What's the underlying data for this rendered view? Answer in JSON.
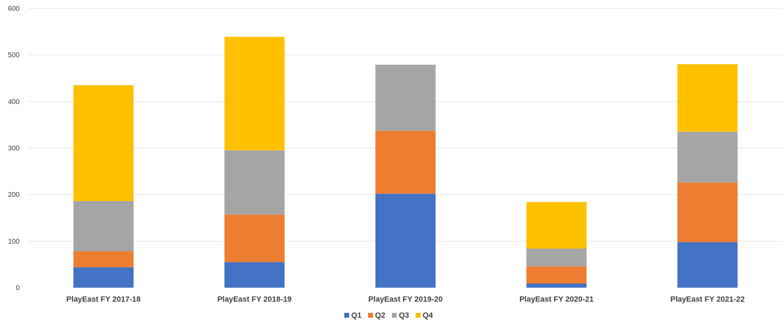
{
  "chart_data": {
    "type": "bar",
    "stacked": true,
    "title": "",
    "xlabel": "",
    "ylabel": "",
    "ylim": [
      0,
      600
    ],
    "yticks": [
      0,
      100,
      200,
      300,
      400,
      500,
      600
    ],
    "grid": true,
    "legend_position": "bottom",
    "categories": [
      "PlayEast FY 2017-18",
      "PlayEast FY 2018-19",
      "PlayEast FY 2019-20",
      "PlayEast FY 2020-21",
      "PlayEast FY 2021-22"
    ],
    "series": [
      {
        "name": "Q1",
        "color": "#4472C4",
        "values": [
          44,
          55,
          202,
          9,
          98
        ]
      },
      {
        "name": "Q2",
        "color": "#ED7D31",
        "values": [
          34,
          102,
          135,
          37,
          128
        ]
      },
      {
        "name": "Q3",
        "color": "#A5A5A5",
        "values": [
          108,
          138,
          142,
          38,
          109
        ]
      },
      {
        "name": "Q4",
        "color": "#FFC000",
        "values": [
          249,
          244,
          0,
          100,
          145
        ]
      }
    ]
  }
}
